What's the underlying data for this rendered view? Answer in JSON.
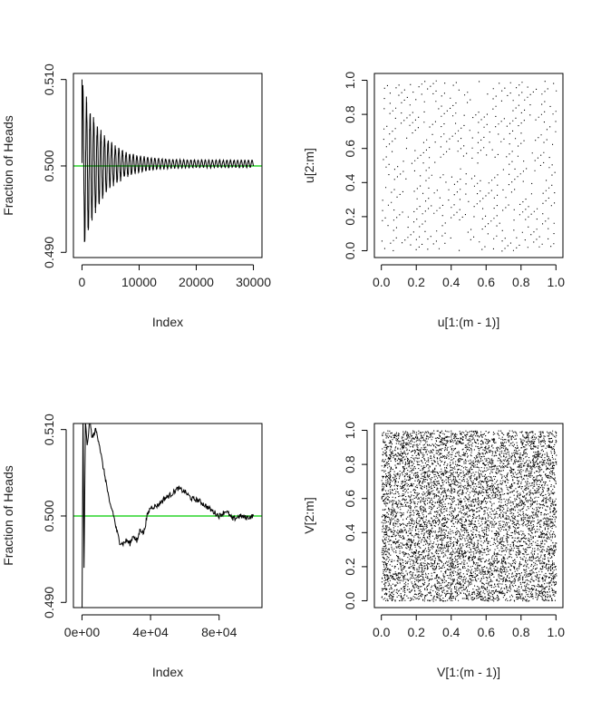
{
  "colors": {
    "frame": "#000000",
    "series": "#000000",
    "reference_line": "#00cc00",
    "background": "#ffffff"
  },
  "chart_data": [
    {
      "type": "line",
      "panel": "top-left",
      "xlabel": "Index",
      "ylabel": "Fraction of Heads",
      "xlim": [
        -1500,
        31500
      ],
      "ylim": [
        0.4894,
        0.5107
      ],
      "xticks": [
        0,
        10000,
        20000,
        30000
      ],
      "xtick_labels": [
        "0",
        "10000",
        "20000",
        "30000"
      ],
      "yticks": [
        0.49,
        0.5,
        0.51
      ],
      "ytick_labels": [
        "0.490",
        "0.500",
        "0.510"
      ],
      "reference_line": {
        "y": 0.5,
        "color": "#00cc00"
      },
      "series": [
        {
          "x": [
            0,
            300,
            600,
            900,
            1200,
            1600,
            2000,
            2500,
            3000,
            4000,
            5000,
            6000,
            8000,
            10000,
            12000,
            14000,
            16000,
            18000,
            20000,
            22000,
            24000,
            26000,
            28000,
            30000
          ],
          "y": [
            0.51,
            0.491,
            0.508,
            0.491,
            0.506,
            0.494,
            0.505,
            0.496,
            0.503,
            0.497,
            0.502,
            0.498,
            0.5015,
            0.499,
            0.501,
            0.4995,
            0.5008,
            0.4996,
            0.5007,
            0.4997,
            0.5006,
            0.4998,
            0.5006,
            0.5003
          ],
          "envelope": {
            "upper_amplitude": 0.0085,
            "lower_amplitude": 0.0095,
            "decay_period": 3500,
            "oscillation_period": 630,
            "floor_amplitude": 0.0004,
            "drift": 0.00025
          }
        }
      ]
    },
    {
      "type": "scatter",
      "panel": "top-right",
      "xlabel": "u[1:(m - 1)]",
      "ylabel": "u[2:m]",
      "xlim": [
        -0.04,
        1.04
      ],
      "ylim": [
        -0.04,
        1.04
      ],
      "xticks": [
        0.0,
        0.2,
        0.4,
        0.6,
        0.8,
        1.0
      ],
      "xtick_labels": [
        "0.0",
        "0.2",
        "0.4",
        "0.6",
        "0.8",
        "1.0"
      ],
      "yticks": [
        0.0,
        0.2,
        0.4,
        0.6,
        0.8,
        1.0
      ],
      "ytick_labels": [
        "0.0",
        "0.2",
        "0.4",
        "0.6",
        "0.8",
        "1.0"
      ],
      "pattern": "lattice",
      "point_count": 1000,
      "lattice": {
        "multiplier": 61,
        "modulus": 1021
      }
    },
    {
      "type": "line",
      "panel": "bottom-left",
      "xlabel": "Index",
      "ylabel": "Fraction of Heads",
      "xlim": [
        -5000,
        105000
      ],
      "ylim": [
        0.4894,
        0.5107
      ],
      "xticks": [
        0,
        40000,
        80000
      ],
      "xtick_labels": [
        "0e+00",
        "4e+04",
        "8e+04"
      ],
      "yticks": [
        0.49,
        0.5,
        0.51
      ],
      "ytick_labels": [
        "0.490",
        "0.500",
        "0.510"
      ],
      "reference_line": {
        "y": 0.5,
        "color": "#00cc00"
      },
      "series": [
        {
          "x": [
            0,
            600,
            1200,
            2000,
            3000,
            4500,
            6000,
            8000,
            10000,
            12000,
            14000,
            16000,
            18000,
            20000,
            22000,
            24000,
            26000,
            28000,
            30000,
            32000,
            34000,
            36000,
            38000,
            40000,
            44000,
            48000,
            52000,
            56000,
            60000,
            64000,
            68000,
            72000,
            76000,
            80000,
            84000,
            88000,
            92000,
            96000,
            100000
          ],
          "y": [
            0.487,
            0.512,
            0.494,
            0.511,
            0.508,
            0.511,
            0.509,
            0.51,
            0.5085,
            0.506,
            0.504,
            0.5015,
            0.5005,
            0.4985,
            0.497,
            0.4968,
            0.4972,
            0.4968,
            0.4978,
            0.497,
            0.4985,
            0.498,
            0.5,
            0.501,
            0.5012,
            0.502,
            0.5025,
            0.5032,
            0.5028,
            0.502,
            0.5018,
            0.5012,
            0.5006,
            0.5,
            0.5006,
            0.4996,
            0.5,
            0.4998,
            0.5
          ]
        }
      ]
    },
    {
      "type": "scatter",
      "panel": "bottom-right",
      "xlabel": "V[1:(m - 1)]",
      "ylabel": "V[2:m]",
      "xlim": [
        -0.04,
        1.04
      ],
      "ylim": [
        -0.04,
        1.04
      ],
      "xticks": [
        0.0,
        0.2,
        0.4,
        0.6,
        0.8,
        1.0
      ],
      "xtick_labels": [
        "0.0",
        "0.2",
        "0.4",
        "0.6",
        "0.8",
        "1.0"
      ],
      "yticks": [
        0.0,
        0.2,
        0.4,
        0.6,
        0.8,
        1.0
      ],
      "ytick_labels": [
        "0.0",
        "0.2",
        "0.4",
        "0.6",
        "0.8",
        "1.0"
      ],
      "pattern": "uniform-random",
      "point_count": 24000
    }
  ]
}
